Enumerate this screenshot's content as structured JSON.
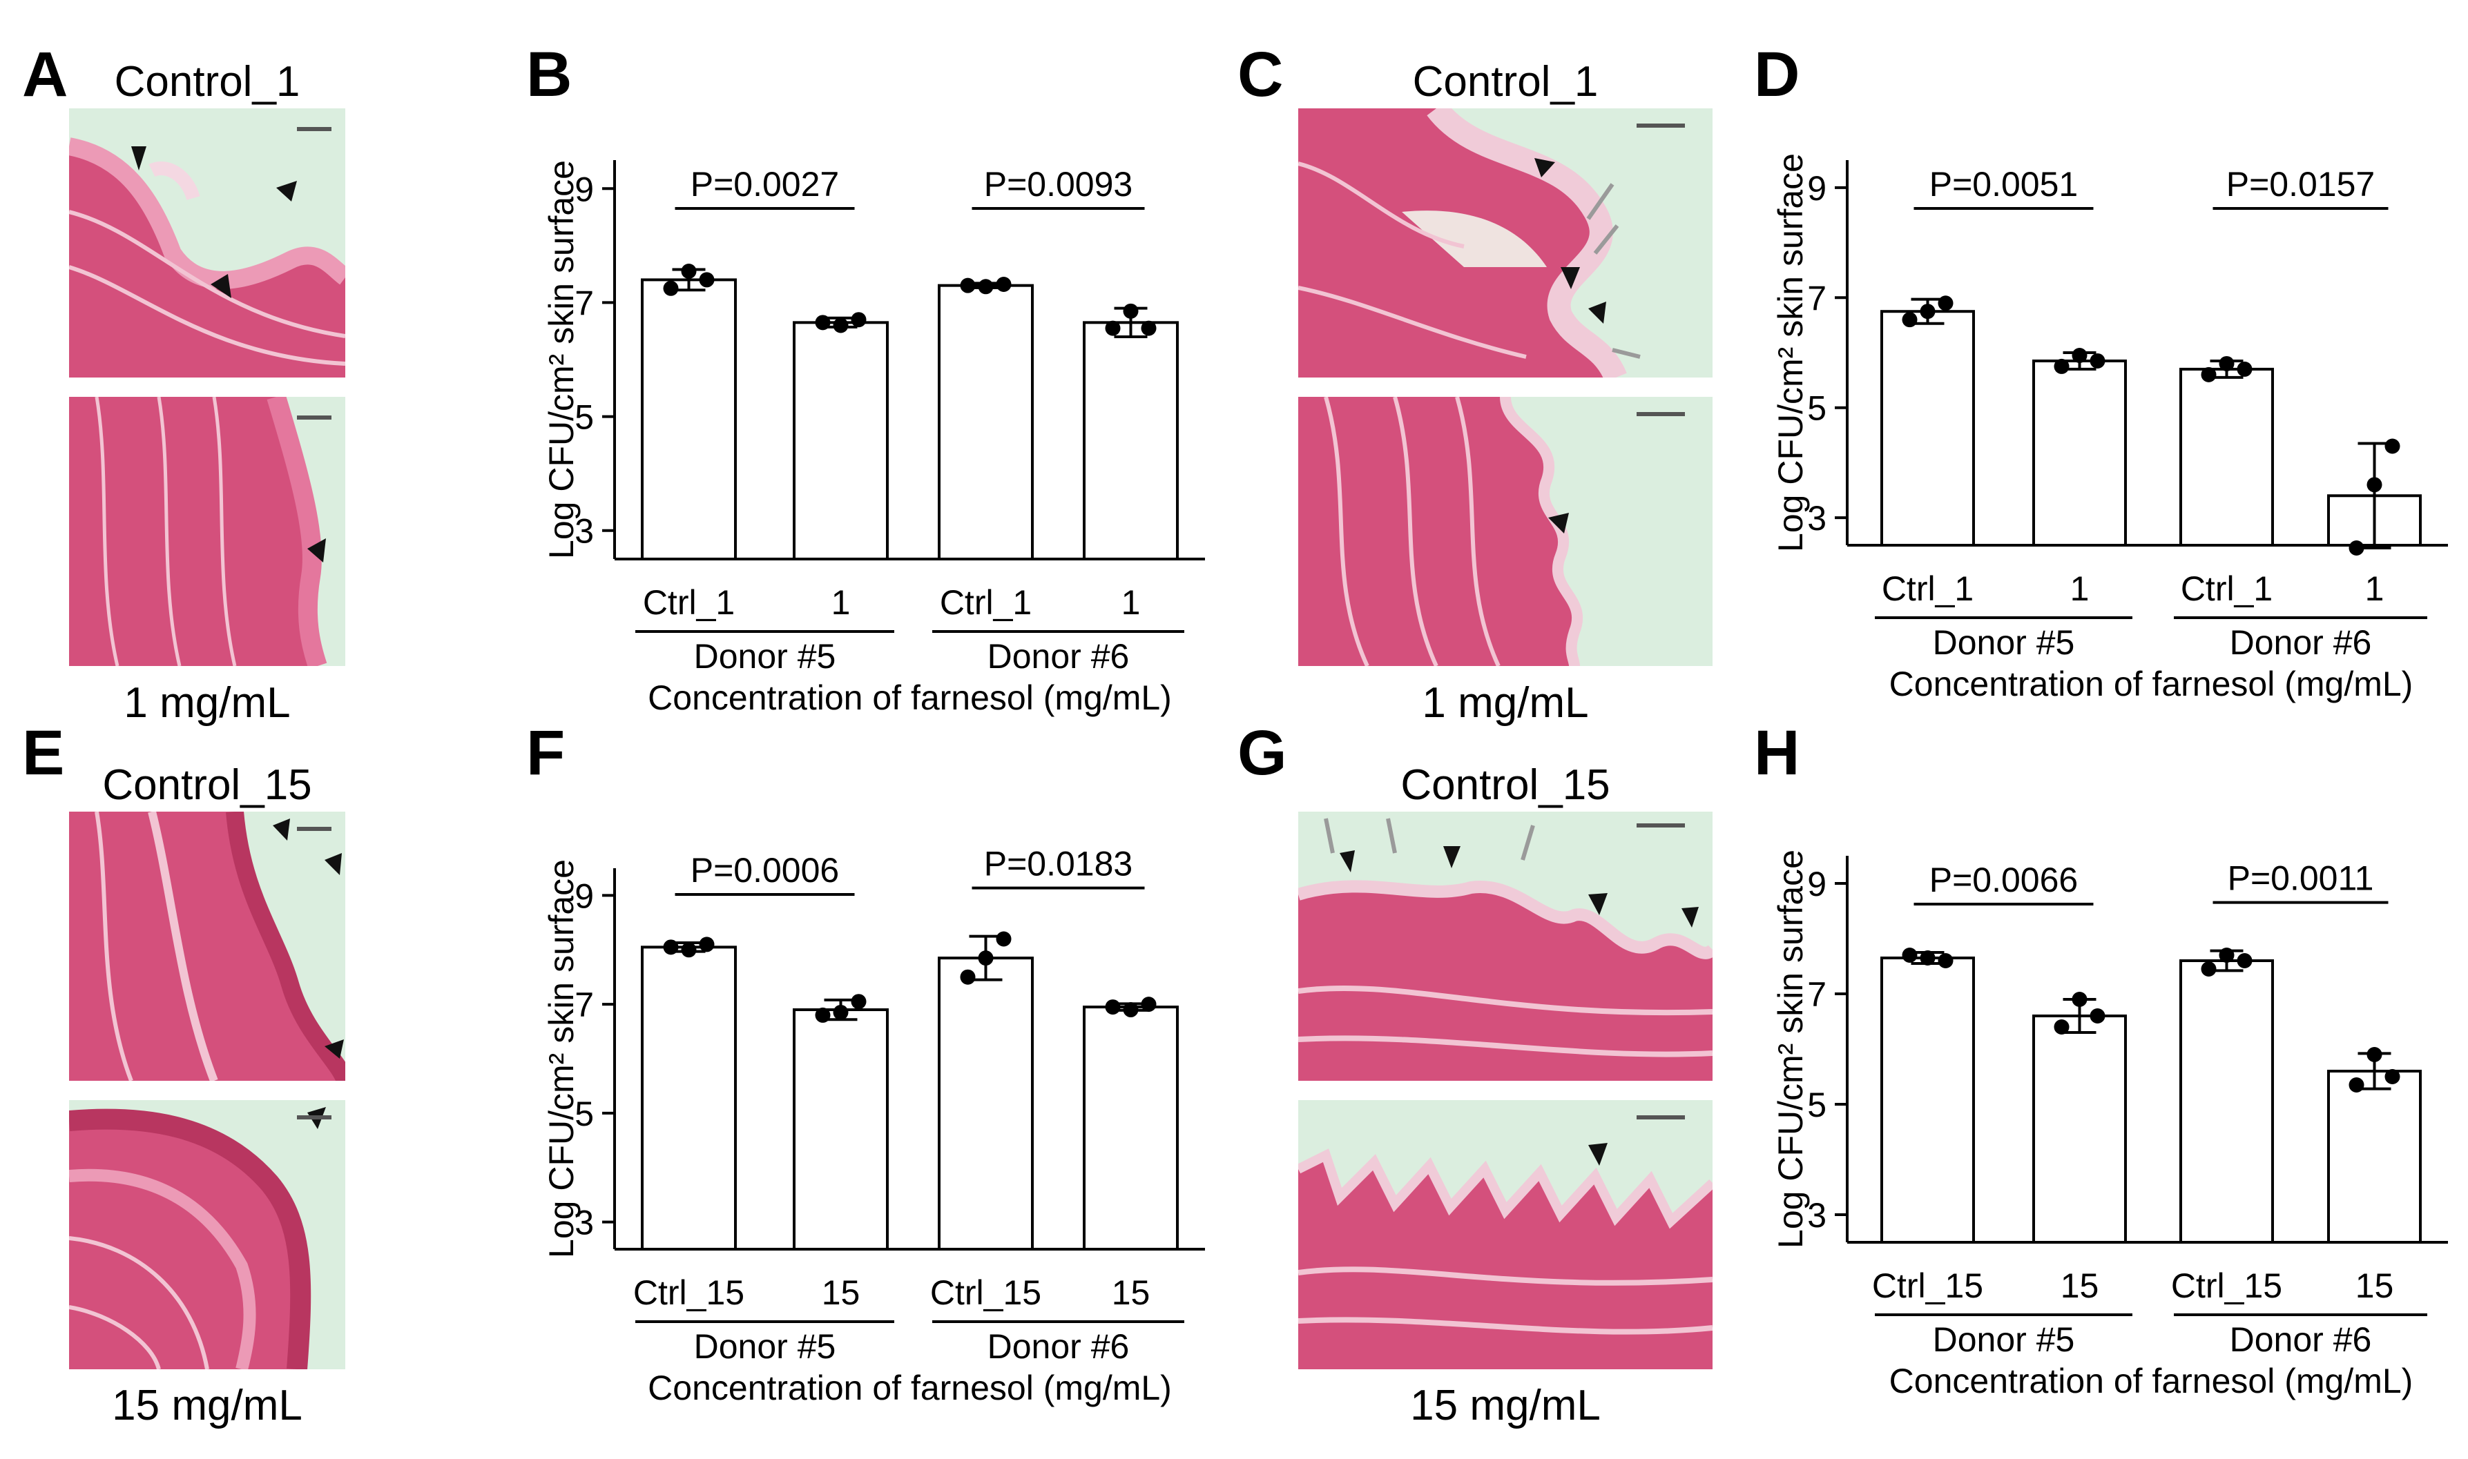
{
  "panel_letters": [
    "A",
    "B",
    "C",
    "D",
    "E",
    "F",
    "G",
    "H"
  ],
  "micrographs": {
    "A": {
      "top_caption": "Control_1",
      "bottom_caption": "1 mg/mL"
    },
    "C": {
      "top_caption": "Control_1",
      "bottom_caption": "1 mg/mL"
    },
    "E": {
      "top_caption": "Control_15",
      "bottom_caption": "15 mg/mL"
    },
    "G": {
      "top_caption": "Control_15",
      "bottom_caption": "15 mg/mL"
    }
  },
  "colors": {
    "tissue": "#d4507c",
    "tissue_light": "#ec9ab6",
    "background_mint": "#dbeedf",
    "marker": "#111111",
    "arrow": "#9a9a9a"
  },
  "chart_data": [
    {
      "panel": "B",
      "type": "bar",
      "ylabel": "Log CFU/cm² skin surface",
      "ylim": [
        2.5,
        9.5
      ],
      "yticks": [
        "3",
        "5",
        "7",
        "9"
      ],
      "categories": [
        "Ctrl_1",
        "1",
        "Ctrl_1",
        "1"
      ],
      "values": [
        7.4,
        6.65,
        7.3,
        6.65
      ],
      "errors": [
        0.18,
        0.08,
        0.04,
        0.25
      ],
      "points": [
        [
          7.25,
          7.55,
          7.4
        ],
        [
          6.65,
          6.6,
          6.7
        ],
        [
          7.3,
          7.28,
          7.32
        ],
        [
          6.55,
          6.85,
          6.55
        ]
      ],
      "groups": [
        "Donor #5",
        "Donor #6"
      ],
      "xlabel": "Concentration of farnesol (mg/mL)",
      "pvalues": [
        "P=0.0027",
        "P=0.0093"
      ]
    },
    {
      "panel": "D",
      "type": "bar",
      "ylabel": "Log CFU/cm² skin surface",
      "ylim": [
        2.5,
        9.5
      ],
      "yticks": [
        "3",
        "5",
        "7",
        "9"
      ],
      "categories": [
        "Ctrl_1",
        "1",
        "Ctrl_1",
        "1"
      ],
      "values": [
        6.75,
        5.85,
        5.7,
        3.4
      ],
      "errors": [
        0.22,
        0.15,
        0.15,
        0.95
      ],
      "points": [
        [
          6.6,
          6.75,
          6.9
        ],
        [
          5.75,
          5.95,
          5.85
        ],
        [
          5.6,
          5.8,
          5.7
        ],
        [
          2.45,
          3.6,
          4.3
        ]
      ],
      "groups": [
        "Donor #5",
        "Donor #6"
      ],
      "xlabel": "Concentration of farnesol (mg/mL)",
      "pvalues": [
        "P=0.0051",
        "P=0.0157"
      ]
    },
    {
      "panel": "F",
      "type": "bar",
      "ylabel": "Log CFU/cm² skin surface",
      "ylim": [
        2.5,
        9.5
      ],
      "yticks": [
        "3",
        "5",
        "7",
        "9"
      ],
      "categories": [
        "Ctrl_15",
        "15",
        "Ctrl_15",
        "15"
      ],
      "values": [
        8.05,
        6.9,
        7.85,
        6.95
      ],
      "errors": [
        0.08,
        0.18,
        0.4,
        0.06
      ],
      "points": [
        [
          8.05,
          8.0,
          8.1
        ],
        [
          6.8,
          6.85,
          7.05
        ],
        [
          7.5,
          7.85,
          8.2
        ],
        [
          6.95,
          6.9,
          7.0
        ]
      ],
      "groups": [
        "Donor #5",
        "Donor #6"
      ],
      "xlabel": "Concentration of farnesol (mg/mL)",
      "pvalues": [
        "P=0.0006",
        "P=0.0183"
      ]
    },
    {
      "panel": "H",
      "type": "bar",
      "ylabel": "Log CFU/cm² skin surface",
      "ylim": [
        2.5,
        9.5
      ],
      "yticks": [
        "3",
        "5",
        "7",
        "9"
      ],
      "categories": [
        "Ctrl_15",
        "15",
        "Ctrl_15",
        "15"
      ],
      "values": [
        7.65,
        6.6,
        7.6,
        5.6
      ],
      "errors": [
        0.1,
        0.3,
        0.18,
        0.32
      ],
      "points": [
        [
          7.7,
          7.65,
          7.6
        ],
        [
          6.4,
          6.9,
          6.6
        ],
        [
          7.45,
          7.7,
          7.6
        ],
        [
          5.35,
          5.9,
          5.5
        ]
      ],
      "groups": [
        "Donor #5",
        "Donor #6"
      ],
      "xlabel": "Concentration of farnesol (mg/mL)",
      "pvalues": [
        "P=0.0066",
        "P=0.0011"
      ]
    }
  ]
}
